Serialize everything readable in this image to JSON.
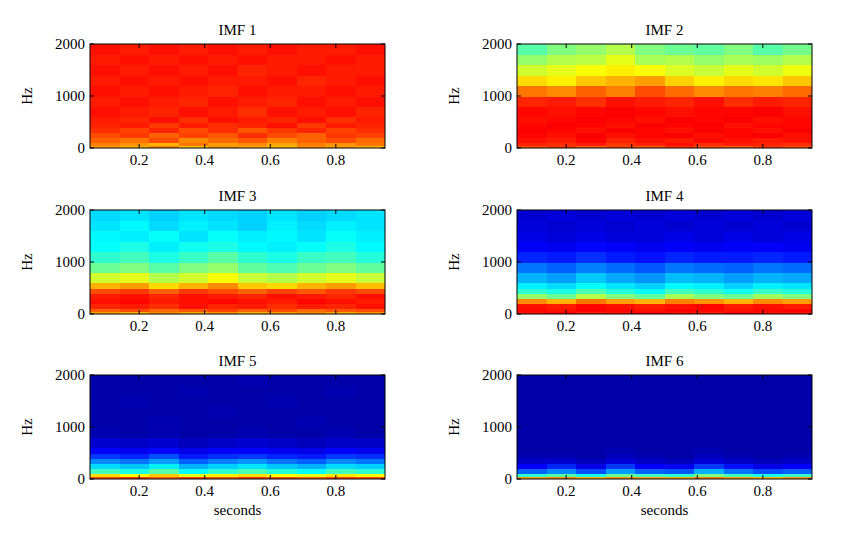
{
  "chart_data": [
    {
      "type": "heatmap",
      "title": "IMF 1",
      "ylabel": "Hz",
      "xlim": [
        0.05,
        0.95
      ],
      "ylim": [
        0,
        2000
      ],
      "xticks": [
        0.2,
        0.4,
        0.6,
        0.8
      ],
      "yticks": [
        0,
        1000,
        2000
      ],
      "clim": [
        0,
        1
      ],
      "x_bins": [
        0.05,
        0.14,
        0.23,
        0.32,
        0.41,
        0.5,
        0.59,
        0.68,
        0.77,
        0.86,
        0.95
      ],
      "y_bins": [
        0,
        50,
        100,
        200,
        300,
        400,
        500,
        600,
        800,
        1000,
        1200,
        1400,
        1600,
        1800,
        2000
      ],
      "cells": [
        [
          0.72,
          0.7,
          0.74,
          0.68,
          0.73,
          0.71,
          0.69,
          0.74,
          0.72,
          0.7
        ],
        [
          0.75,
          0.73,
          0.7,
          0.76,
          0.72,
          0.74,
          0.71,
          0.75,
          0.73,
          0.76
        ],
        [
          0.78,
          0.76,
          0.8,
          0.74,
          0.77,
          0.79,
          0.75,
          0.78,
          0.8,
          0.77
        ],
        [
          0.8,
          0.82,
          0.78,
          0.81,
          0.79,
          0.83,
          0.8,
          0.78,
          0.82,
          0.81
        ],
        [
          0.83,
          0.81,
          0.84,
          0.8,
          0.83,
          0.79,
          0.82,
          0.84,
          0.81,
          0.83
        ],
        [
          0.84,
          0.85,
          0.82,
          0.85,
          0.83,
          0.84,
          0.86,
          0.82,
          0.85,
          0.84
        ],
        [
          0.85,
          0.84,
          0.86,
          0.83,
          0.86,
          0.85,
          0.84,
          0.86,
          0.83,
          0.85
        ],
        [
          0.86,
          0.85,
          0.84,
          0.86,
          0.85,
          0.83,
          0.86,
          0.85,
          0.86,
          0.84
        ],
        [
          0.85,
          0.86,
          0.85,
          0.84,
          0.86,
          0.85,
          0.84,
          0.86,
          0.85,
          0.86
        ],
        [
          0.86,
          0.85,
          0.86,
          0.85,
          0.84,
          0.86,
          0.85,
          0.85,
          0.86,
          0.85
        ],
        [
          0.85,
          0.86,
          0.85,
          0.86,
          0.85,
          0.85,
          0.86,
          0.84,
          0.85,
          0.86
        ],
        [
          0.86,
          0.85,
          0.86,
          0.85,
          0.86,
          0.84,
          0.85,
          0.86,
          0.85,
          0.85
        ],
        [
          0.85,
          0.86,
          0.85,
          0.86,
          0.85,
          0.86,
          0.85,
          0.85,
          0.86,
          0.85
        ],
        [
          0.86,
          0.85,
          0.86,
          0.85,
          0.86,
          0.85,
          0.86,
          0.85,
          0.85,
          0.86
        ]
      ]
    },
    {
      "type": "heatmap",
      "title": "IMF 2",
      "ylabel": "Hz",
      "xlim": [
        0.05,
        0.95
      ],
      "ylim": [
        0,
        2000
      ],
      "xticks": [
        0.2,
        0.4,
        0.6,
        0.8
      ],
      "yticks": [
        0,
        1000,
        2000
      ],
      "clim": [
        0,
        1
      ],
      "x_bins": [
        0.05,
        0.14,
        0.23,
        0.32,
        0.41,
        0.5,
        0.59,
        0.68,
        0.77,
        0.86,
        0.95
      ],
      "y_bins": [
        0,
        50,
        100,
        200,
        300,
        400,
        500,
        600,
        800,
        1000,
        1200,
        1400,
        1600,
        1800,
        2000
      ],
      "cells": [
        [
          0.8,
          0.82,
          0.78,
          0.81,
          0.79,
          0.83,
          0.8,
          0.78,
          0.82,
          0.8
        ],
        [
          0.84,
          0.83,
          0.85,
          0.82,
          0.84,
          0.86,
          0.83,
          0.85,
          0.84,
          0.83
        ],
        [
          0.86,
          0.85,
          0.87,
          0.84,
          0.86,
          0.85,
          0.87,
          0.86,
          0.85,
          0.86
        ],
        [
          0.87,
          0.86,
          0.88,
          0.86,
          0.87,
          0.88,
          0.86,
          0.87,
          0.88,
          0.86
        ],
        [
          0.88,
          0.87,
          0.86,
          0.88,
          0.87,
          0.86,
          0.88,
          0.87,
          0.86,
          0.88
        ],
        [
          0.87,
          0.88,
          0.87,
          0.86,
          0.88,
          0.87,
          0.88,
          0.86,
          0.87,
          0.87
        ],
        [
          0.86,
          0.87,
          0.88,
          0.87,
          0.86,
          0.88,
          0.87,
          0.88,
          0.86,
          0.87
        ],
        [
          0.87,
          0.86,
          0.87,
          0.88,
          0.87,
          0.86,
          0.87,
          0.87,
          0.88,
          0.86
        ],
        [
          0.84,
          0.85,
          0.83,
          0.86,
          0.85,
          0.84,
          0.86,
          0.83,
          0.85,
          0.84
        ],
        [
          0.76,
          0.74,
          0.78,
          0.75,
          0.8,
          0.77,
          0.74,
          0.76,
          0.75,
          0.77
        ],
        [
          0.66,
          0.64,
          0.68,
          0.7,
          0.72,
          0.67,
          0.64,
          0.66,
          0.65,
          0.68
        ],
        [
          0.58,
          0.6,
          0.62,
          0.64,
          0.62,
          0.59,
          0.57,
          0.6,
          0.58,
          0.61
        ],
        [
          0.52,
          0.55,
          0.56,
          0.6,
          0.54,
          0.55,
          0.52,
          0.54,
          0.53,
          0.55
        ],
        [
          0.46,
          0.5,
          0.52,
          0.55,
          0.5,
          0.48,
          0.47,
          0.5,
          0.46,
          0.49
        ]
      ]
    },
    {
      "type": "heatmap",
      "title": "IMF 3",
      "ylabel": "Hz",
      "xlim": [
        0.05,
        0.95
      ],
      "ylim": [
        0,
        2000
      ],
      "xticks": [
        0.2,
        0.4,
        0.6,
        0.8
      ],
      "yticks": [
        0,
        1000,
        2000
      ],
      "clim": [
        0,
        1
      ],
      "x_bins": [
        0.05,
        0.14,
        0.23,
        0.32,
        0.41,
        0.5,
        0.59,
        0.68,
        0.77,
        0.86,
        0.95
      ],
      "y_bins": [
        0,
        50,
        100,
        200,
        300,
        400,
        500,
        600,
        800,
        1000,
        1200,
        1400,
        1600,
        1800,
        2000
      ],
      "cells": [
        [
          0.72,
          0.7,
          0.74,
          0.71,
          0.73,
          0.7,
          0.72,
          0.74,
          0.71,
          0.73
        ],
        [
          0.78,
          0.8,
          0.77,
          0.79,
          0.81,
          0.78,
          0.8,
          0.77,
          0.79,
          0.8
        ],
        [
          0.84,
          0.85,
          0.83,
          0.86,
          0.84,
          0.85,
          0.83,
          0.85,
          0.84,
          0.86
        ],
        [
          0.86,
          0.87,
          0.85,
          0.86,
          0.87,
          0.86,
          0.85,
          0.87,
          0.86,
          0.85
        ],
        [
          0.85,
          0.86,
          0.84,
          0.86,
          0.85,
          0.84,
          0.86,
          0.85,
          0.84,
          0.86
        ],
        [
          0.8,
          0.82,
          0.78,
          0.82,
          0.8,
          0.78,
          0.81,
          0.79,
          0.82,
          0.8
        ],
        [
          0.7,
          0.72,
          0.66,
          0.7,
          0.74,
          0.68,
          0.66,
          0.7,
          0.72,
          0.69
        ],
        [
          0.58,
          0.6,
          0.55,
          0.58,
          0.62,
          0.57,
          0.55,
          0.58,
          0.6,
          0.57
        ],
        [
          0.48,
          0.5,
          0.46,
          0.5,
          0.52,
          0.47,
          0.45,
          0.48,
          0.5,
          0.47
        ],
        [
          0.42,
          0.44,
          0.4,
          0.43,
          0.46,
          0.42,
          0.4,
          0.43,
          0.44,
          0.41
        ],
        [
          0.38,
          0.4,
          0.36,
          0.39,
          0.4,
          0.37,
          0.36,
          0.38,
          0.4,
          0.37
        ],
        [
          0.37,
          0.36,
          0.38,
          0.35,
          0.38,
          0.36,
          0.37,
          0.35,
          0.38,
          0.36
        ],
        [
          0.35,
          0.37,
          0.34,
          0.36,
          0.35,
          0.33,
          0.36,
          0.34,
          0.36,
          0.35
        ],
        [
          0.34,
          0.35,
          0.33,
          0.35,
          0.34,
          0.33,
          0.35,
          0.33,
          0.34,
          0.35
        ]
      ]
    },
    {
      "type": "heatmap",
      "title": "IMF 4",
      "ylabel": "Hz",
      "xlim": [
        0.05,
        0.95
      ],
      "ylim": [
        0,
        2000
      ],
      "xticks": [
        0.2,
        0.4,
        0.6,
        0.8
      ],
      "yticks": [
        0,
        1000,
        2000
      ],
      "clim": [
        0,
        1
      ],
      "x_bins": [
        0.05,
        0.14,
        0.23,
        0.32,
        0.41,
        0.5,
        0.59,
        0.68,
        0.77,
        0.86,
        0.95
      ],
      "y_bins": [
        0,
        50,
        100,
        200,
        300,
        400,
        500,
        600,
        800,
        1000,
        1200,
        1400,
        1600,
        1800,
        2000
      ],
      "cells": [
        [
          0.86,
          0.87,
          0.85,
          0.86,
          0.87,
          0.86,
          0.85,
          0.87,
          0.86,
          0.86
        ],
        [
          0.87,
          0.86,
          0.88,
          0.87,
          0.86,
          0.88,
          0.87,
          0.86,
          0.87,
          0.88
        ],
        [
          0.86,
          0.85,
          0.87,
          0.86,
          0.85,
          0.86,
          0.87,
          0.85,
          0.86,
          0.85
        ],
        [
          0.74,
          0.7,
          0.76,
          0.72,
          0.7,
          0.75,
          0.73,
          0.7,
          0.74,
          0.72
        ],
        [
          0.52,
          0.48,
          0.55,
          0.5,
          0.47,
          0.54,
          0.5,
          0.48,
          0.53,
          0.5
        ],
        [
          0.42,
          0.4,
          0.45,
          0.41,
          0.38,
          0.44,
          0.42,
          0.39,
          0.43,
          0.41
        ],
        [
          0.36,
          0.34,
          0.38,
          0.35,
          0.33,
          0.37,
          0.36,
          0.33,
          0.36,
          0.35
        ],
        [
          0.3,
          0.28,
          0.32,
          0.29,
          0.27,
          0.31,
          0.3,
          0.28,
          0.3,
          0.29
        ],
        [
          0.24,
          0.22,
          0.25,
          0.23,
          0.21,
          0.24,
          0.23,
          0.22,
          0.24,
          0.23
        ],
        [
          0.16,
          0.15,
          0.17,
          0.15,
          0.14,
          0.16,
          0.15,
          0.15,
          0.16,
          0.15
        ],
        [
          0.12,
          0.11,
          0.13,
          0.12,
          0.11,
          0.12,
          0.11,
          0.12,
          0.12,
          0.11
        ],
        [
          0.1,
          0.09,
          0.1,
          0.09,
          0.09,
          0.1,
          0.09,
          0.1,
          0.09,
          0.1
        ],
        [
          0.09,
          0.08,
          0.09,
          0.08,
          0.09,
          0.08,
          0.09,
          0.08,
          0.09,
          0.08
        ],
        [
          0.08,
          0.09,
          0.08,
          0.09,
          0.08,
          0.09,
          0.08,
          0.09,
          0.08,
          0.09
        ]
      ]
    },
    {
      "type": "heatmap",
      "title": "IMF 5",
      "ylabel": "Hz",
      "xlabel": "seconds",
      "xlim": [
        0.05,
        0.95
      ],
      "ylim": [
        0,
        2000
      ],
      "xticks": [
        0.2,
        0.4,
        0.6,
        0.8
      ],
      "yticks": [
        0,
        1000,
        2000
      ],
      "clim": [
        0,
        1
      ],
      "x_bins": [
        0.05,
        0.14,
        0.23,
        0.32,
        0.41,
        0.5,
        0.59,
        0.68,
        0.77,
        0.86,
        0.95
      ],
      "y_bins": [
        0,
        50,
        100,
        200,
        300,
        400,
        500,
        600,
        800,
        1000,
        1200,
        1400,
        1600,
        1800,
        2000
      ],
      "cells": [
        [
          0.8,
          0.82,
          0.78,
          0.81,
          0.79,
          0.82,
          0.8,
          0.78,
          0.81,
          0.8
        ],
        [
          0.66,
          0.62,
          0.68,
          0.6,
          0.64,
          0.66,
          0.62,
          0.6,
          0.65,
          0.63
        ],
        [
          0.44,
          0.4,
          0.46,
          0.38,
          0.42,
          0.45,
          0.41,
          0.38,
          0.44,
          0.42
        ],
        [
          0.34,
          0.32,
          0.36,
          0.3,
          0.33,
          0.35,
          0.32,
          0.3,
          0.34,
          0.33
        ],
        [
          0.26,
          0.24,
          0.28,
          0.22,
          0.25,
          0.27,
          0.24,
          0.22,
          0.26,
          0.24
        ],
        [
          0.18,
          0.16,
          0.2,
          0.15,
          0.17,
          0.18,
          0.16,
          0.15,
          0.18,
          0.17
        ],
        [
          0.12,
          0.11,
          0.13,
          0.1,
          0.12,
          0.12,
          0.11,
          0.1,
          0.12,
          0.11
        ],
        [
          0.08,
          0.07,
          0.08,
          0.06,
          0.07,
          0.08,
          0.07,
          0.06,
          0.07,
          0.07
        ],
        [
          0.05,
          0.04,
          0.05,
          0.04,
          0.04,
          0.05,
          0.04,
          0.04,
          0.05,
          0.04
        ],
        [
          0.04,
          0.04,
          0.05,
          0.04,
          0.04,
          0.04,
          0.04,
          0.05,
          0.04,
          0.04
        ],
        [
          0.04,
          0.04,
          0.04,
          0.04,
          0.05,
          0.04,
          0.04,
          0.04,
          0.04,
          0.04
        ],
        [
          0.04,
          0.05,
          0.04,
          0.04,
          0.04,
          0.04,
          0.05,
          0.04,
          0.04,
          0.04
        ],
        [
          0.04,
          0.04,
          0.04,
          0.05,
          0.04,
          0.04,
          0.04,
          0.04,
          0.05,
          0.04
        ],
        [
          0.04,
          0.04,
          0.04,
          0.04,
          0.04,
          0.05,
          0.04,
          0.04,
          0.04,
          0.04
        ]
      ]
    },
    {
      "type": "heatmap",
      "title": "IMF 6",
      "ylabel": "Hz",
      "xlabel": "seconds",
      "xlim": [
        0.05,
        0.95
      ],
      "ylim": [
        0,
        2000
      ],
      "xticks": [
        0.2,
        0.4,
        0.6,
        0.8
      ],
      "yticks": [
        0,
        1000,
        2000
      ],
      "clim": [
        0,
        1
      ],
      "x_bins": [
        0.05,
        0.14,
        0.23,
        0.32,
        0.41,
        0.5,
        0.59,
        0.68,
        0.77,
        0.86,
        0.95
      ],
      "y_bins": [
        0,
        50,
        100,
        200,
        300,
        400,
        500,
        600,
        800,
        1000,
        1200,
        1400,
        1600,
        1800,
        2000
      ],
      "cells": [
        [
          0.72,
          0.74,
          0.7,
          0.73,
          0.72,
          0.71,
          0.75,
          0.72,
          0.7,
          0.73
        ],
        [
          0.42,
          0.46,
          0.4,
          0.48,
          0.44,
          0.42,
          0.5,
          0.44,
          0.4,
          0.43
        ],
        [
          0.22,
          0.26,
          0.2,
          0.28,
          0.22,
          0.21,
          0.3,
          0.24,
          0.2,
          0.22
        ],
        [
          0.12,
          0.16,
          0.1,
          0.18,
          0.12,
          0.11,
          0.18,
          0.14,
          0.1,
          0.12
        ],
        [
          0.07,
          0.08,
          0.06,
          0.09,
          0.07,
          0.06,
          0.09,
          0.07,
          0.06,
          0.07
        ],
        [
          0.05,
          0.05,
          0.04,
          0.06,
          0.05,
          0.04,
          0.06,
          0.05,
          0.04,
          0.05
        ],
        [
          0.04,
          0.04,
          0.04,
          0.05,
          0.04,
          0.04,
          0.05,
          0.04,
          0.04,
          0.04
        ],
        [
          0.04,
          0.04,
          0.04,
          0.04,
          0.04,
          0.04,
          0.04,
          0.04,
          0.04,
          0.04
        ],
        [
          0.04,
          0.04,
          0.04,
          0.04,
          0.04,
          0.04,
          0.04,
          0.04,
          0.04,
          0.04
        ],
        [
          0.04,
          0.04,
          0.04,
          0.04,
          0.04,
          0.04,
          0.04,
          0.04,
          0.04,
          0.04
        ],
        [
          0.04,
          0.04,
          0.04,
          0.04,
          0.04,
          0.04,
          0.04,
          0.04,
          0.04,
          0.04
        ],
        [
          0.04,
          0.04,
          0.04,
          0.04,
          0.04,
          0.04,
          0.04,
          0.04,
          0.04,
          0.04
        ],
        [
          0.04,
          0.04,
          0.04,
          0.04,
          0.04,
          0.04,
          0.04,
          0.04,
          0.04,
          0.04
        ],
        [
          0.04,
          0.04,
          0.04,
          0.04,
          0.04,
          0.04,
          0.04,
          0.04,
          0.04,
          0.04
        ]
      ]
    }
  ]
}
